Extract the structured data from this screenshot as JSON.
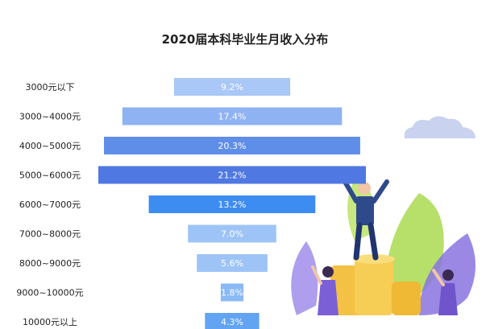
{
  "chart_data": {
    "type": "bar",
    "title": "2020届本科毕业生月收入分布",
    "categories": [
      "3000元以下",
      "3000~4000元",
      "4000~5000元",
      "5000~6000元",
      "6000~7000元",
      "7000~8000元",
      "8000~9000元",
      "9000~10000元",
      "10000元以上"
    ],
    "values": [
      9.2,
      17.4,
      20.3,
      21.2,
      13.2,
      7.0,
      5.6,
      1.8,
      4.3
    ],
    "value_labels": [
      "9.2%",
      "17.4%",
      "20.3%",
      "21.2%",
      "13.2%",
      "7.0%",
      "5.6%",
      "1.8%",
      "4.3%"
    ],
    "orientation": "horizontal-centered",
    "xlabel": "",
    "ylabel": "",
    "grid": false,
    "legend": "none",
    "colors": {
      "bars": [
        "#a9c7f7",
        "#8fb2f3",
        "#5f8ee9",
        "#4f78e3",
        "#3d8cf2",
        "#9ec4f7",
        "#9ec4f7",
        "#8ab9f5",
        "#62a3f2"
      ],
      "cloud": "#c9d2ee",
      "person_suit": "#2f4a8a",
      "coins": "#f3c244",
      "leaf_purple": "#8a73e0",
      "leaf_green": "#b7e06a"
    }
  }
}
